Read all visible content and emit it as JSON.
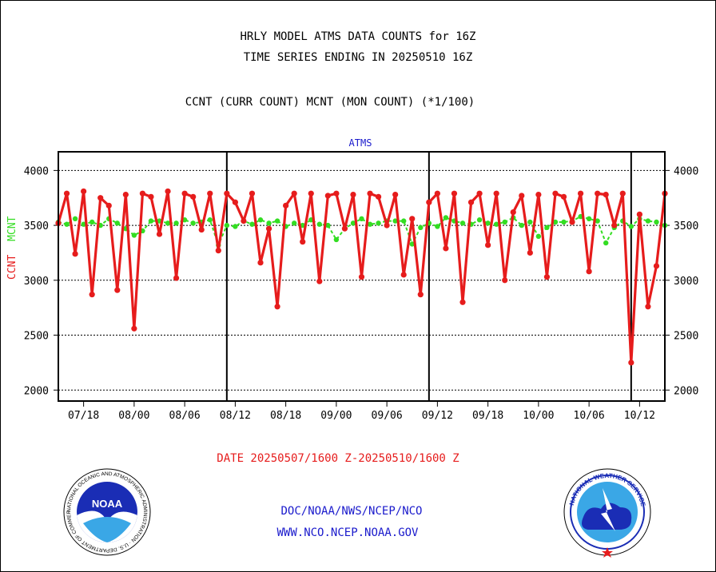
{
  "title_lines": [
    "HRLY MODEL ATMS DATA COUNTS for 16Z",
    "TIME SERIES ENDING IN 20250510 16Z"
  ],
  "subtitle": "CCNT (CURR COUNT) MCNT (MON COUNT) (*1/100)",
  "panel_label": "ATMS",
  "date_caption": "DATE 20250507/1600 Z-20250510/1600 Z",
  "links": [
    "DOC/NOAA/NWS/NCEP/NCO",
    "WWW.NCO.NCEP.NOAA.GOV"
  ],
  "logos": {
    "noaa": {
      "center_text": "NOAA",
      "ring_text": "NATIONAL OCEANIC AND ATMOSPHERIC ADMINISTRATION · U.S. DEPARTMENT OF COMMERCE"
    },
    "nws": {
      "ring_text": "NATIONAL WEATHER SERVICE"
    }
  },
  "colors": {
    "ccnt": "#e61c1c",
    "mcnt": "#33dd22",
    "accent_blue": "#1a1acc"
  },
  "chart_data": {
    "type": "line",
    "ylabel_left": [
      "CCNT",
      "MCNT"
    ],
    "yticks": [
      2000,
      2500,
      3000,
      3500,
      4000
    ],
    "ylim": [
      1900,
      4170
    ],
    "xticks": [
      "07/18",
      "08/00",
      "08/06",
      "08/12",
      "08/18",
      "09/00",
      "09/06",
      "09/12",
      "09/18",
      "10/00",
      "10/06",
      "10/12"
    ],
    "xtick_hours": [
      3,
      9,
      15,
      21,
      27,
      33,
      39,
      45,
      51,
      57,
      63,
      69
    ],
    "x_range_hours": [
      0,
      72
    ],
    "day_boundary_hours": [
      20,
      44,
      68
    ],
    "grid": "horizontal dotted",
    "series": [
      {
        "name": "CCNT",
        "color": "#e61c1c",
        "values": [
          3520,
          3790,
          3240,
          3810,
          2870,
          3750,
          3680,
          2910,
          3780,
          2560,
          3790,
          3760,
          3420,
          3810,
          3020,
          3790,
          3760,
          3460,
          3790,
          3270,
          3790,
          3710,
          3540,
          3790,
          3160,
          3470,
          2760,
          3680,
          3790,
          3350,
          3790,
          2990,
          3770,
          3790,
          3470,
          3780,
          3030,
          3790,
          3760,
          3500,
          3780,
          3050,
          3560,
          2870,
          3710,
          3790,
          3290,
          3790,
          2800,
          3710,
          3790,
          3320,
          3790,
          3000,
          3620,
          3770,
          3250,
          3780,
          3030,
          3790,
          3760,
          3530,
          3790,
          3080,
          3790,
          3780,
          3500,
          3790,
          2250,
          3600,
          2760,
          3130,
          3790
        ]
      },
      {
        "name": "MCNT",
        "color": "#33dd22",
        "values": [
          3530,
          3510,
          3560,
          3510,
          3530,
          3500,
          3560,
          3520,
          3470,
          3410,
          3450,
          3540,
          3540,
          3520,
          3520,
          3550,
          3520,
          3530,
          3550,
          3320,
          3500,
          3490,
          3540,
          3510,
          3550,
          3520,
          3540,
          3490,
          3520,
          3500,
          3550,
          3510,
          3500,
          3370,
          3470,
          3520,
          3560,
          3510,
          3520,
          3540,
          3540,
          3540,
          3330,
          3480,
          3520,
          3490,
          3570,
          3540,
          3520,
          3510,
          3550,
          3520,
          3510,
          3530,
          3570,
          3500,
          3530,
          3400,
          3480,
          3530,
          3530,
          3540,
          3580,
          3560,
          3540,
          3340,
          3480,
          3540,
          3490,
          3560,
          3540,
          3530,
          3500
        ]
      }
    ]
  }
}
